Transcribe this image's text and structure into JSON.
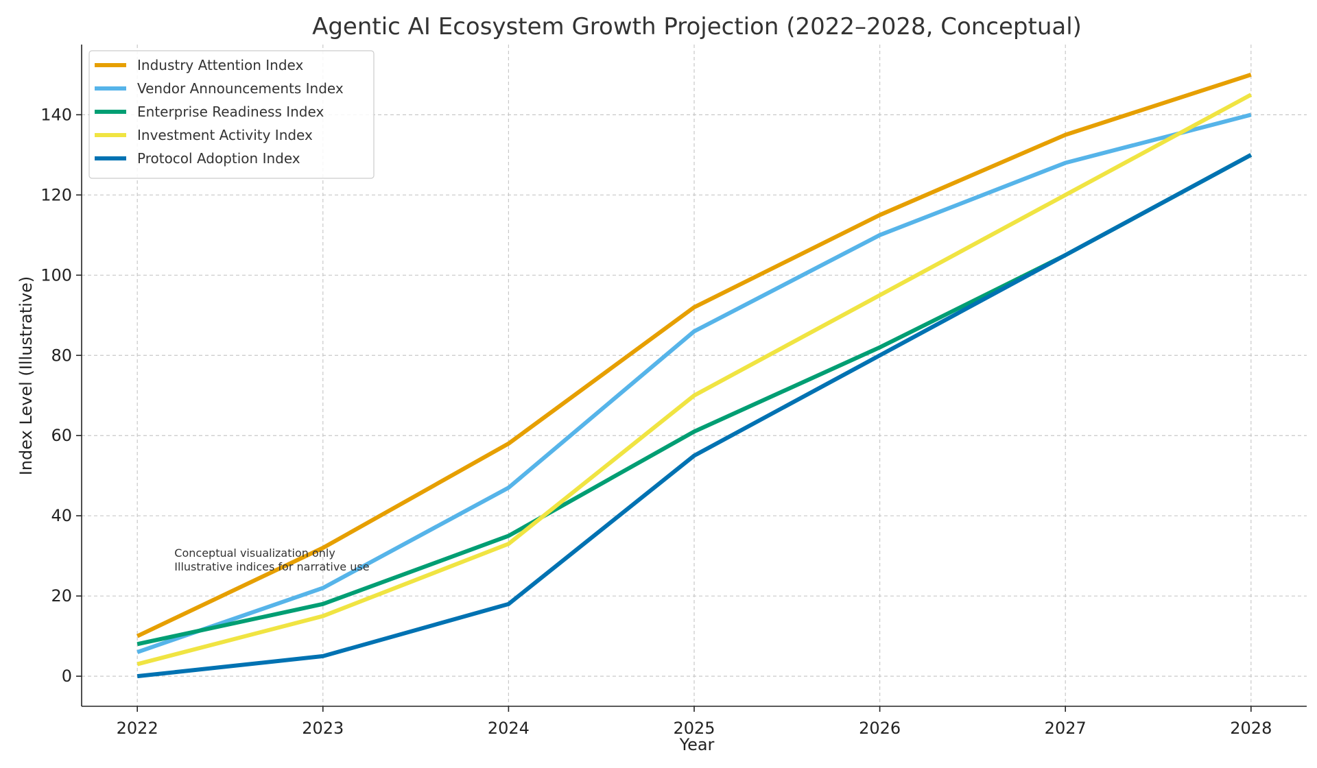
{
  "chart_data": {
    "type": "line",
    "title": "Agentic AI Ecosystem Growth Projection (2022–2028, Conceptual)",
    "xlabel": "Year",
    "ylabel": "Index Level (Illustrative)",
    "x": [
      "2022",
      "2023",
      "2024",
      "2025",
      "2026",
      "2027",
      "2028"
    ],
    "xlim": [
      2021.7,
      2028.3
    ],
    "ylim": [
      -7.5,
      157.5
    ],
    "yticks": [
      0,
      20,
      40,
      60,
      80,
      100,
      120,
      140
    ],
    "grid": true,
    "legend_position": "top-left",
    "series": [
      {
        "name": "Industry Attention Index",
        "color": "#E69F00",
        "values": [
          10,
          32,
          58,
          92,
          115,
          135,
          150
        ]
      },
      {
        "name": "Vendor Announcements Index",
        "color": "#56B4E9",
        "values": [
          6,
          22,
          47,
          86,
          110,
          128,
          140
        ]
      },
      {
        "name": "Enterprise Readiness Index",
        "color": "#009E73",
        "values": [
          8,
          18,
          35,
          61,
          82,
          105,
          130
        ]
      },
      {
        "name": "Investment Activity Index",
        "color": "#F0E442",
        "values": [
          3,
          15,
          33,
          70,
          95,
          120,
          145
        ]
      },
      {
        "name": "Protocol Adoption Index",
        "color": "#0072B2",
        "values": [
          0,
          5,
          18,
          55,
          80,
          105,
          130
        ]
      }
    ],
    "annotation": {
      "lines": [
        "Conceptual visualization only",
        "Illustrative indices for narrative use"
      ],
      "x": 2022.2,
      "y": 27
    }
  }
}
